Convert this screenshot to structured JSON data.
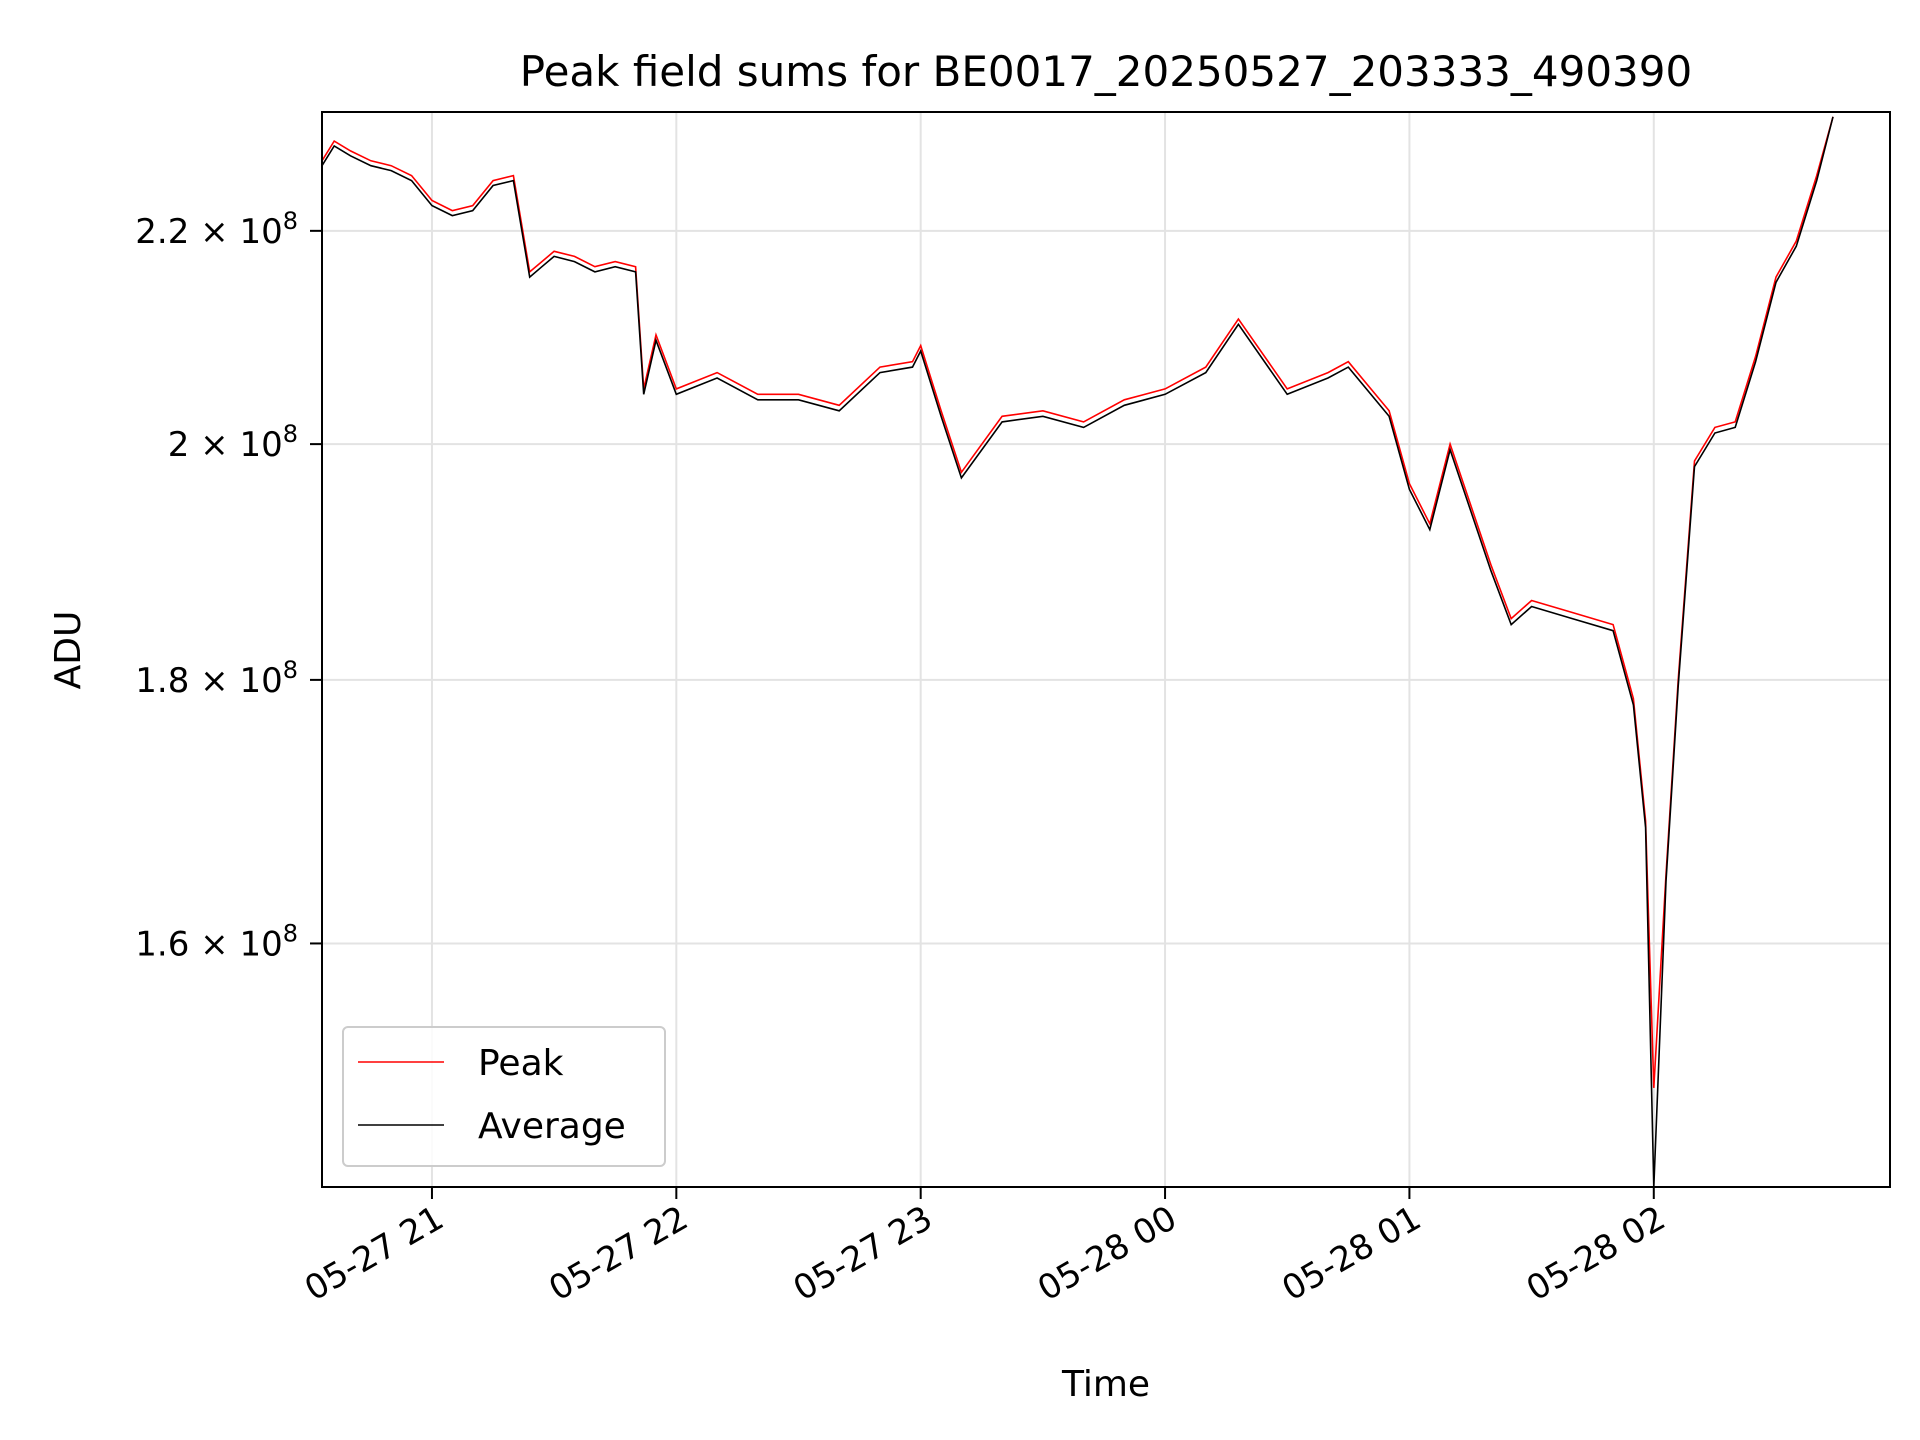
{
  "chart_data": {
    "type": "line",
    "title": "Peak field sums for BE0017_20250527_203333_490390",
    "xlabel": "Time",
    "ylabel": "ADU",
    "y_scale": "log",
    "grid": true,
    "legend": "lower-left",
    "xlim": [
      "2025-05-27 20:33",
      "2025-05-28 02:58"
    ],
    "ylim": [
      143500000,
      232000000
    ],
    "x_ticks": [
      {
        "value": "2025-05-27 21:00",
        "label": "05-27 21"
      },
      {
        "value": "2025-05-27 22:00",
        "label": "05-27 22"
      },
      {
        "value": "2025-05-27 23:00",
        "label": "05-27 23"
      },
      {
        "value": "2025-05-28 00:00",
        "label": "05-28 00"
      },
      {
        "value": "2025-05-28 01:00",
        "label": "05-28 01"
      },
      {
        "value": "2025-05-28 02:00",
        "label": "05-28 02"
      }
    ],
    "y_ticks": [
      {
        "value": 160000000,
        "mantissa": "1.6",
        "base": "10",
        "exp": "8"
      },
      {
        "value": 180000000,
        "mantissa": "1.8",
        "base": "10",
        "exp": "8"
      },
      {
        "value": 200000000,
        "mantissa": "2",
        "base": "10",
        "exp": "8"
      },
      {
        "value": 220000000,
        "mantissa": "2.2",
        "base": "10",
        "exp": "8"
      }
    ],
    "series": [
      {
        "name": "Peak",
        "color": "#ff0000",
        "x": [
          "2025-05-27 20:33",
          "2025-05-27 20:36",
          "2025-05-27 20:40",
          "2025-05-27 20:45",
          "2025-05-27 20:50",
          "2025-05-27 20:55",
          "2025-05-27 21:00",
          "2025-05-27 21:05",
          "2025-05-27 21:10",
          "2025-05-27 21:15",
          "2025-05-27 21:20",
          "2025-05-27 21:24",
          "2025-05-27 21:27",
          "2025-05-27 21:30",
          "2025-05-27 21:35",
          "2025-05-27 21:40",
          "2025-05-27 21:45",
          "2025-05-27 21:50",
          "2025-05-27 21:52",
          "2025-05-27 21:55",
          "2025-05-27 22:00",
          "2025-05-27 22:10",
          "2025-05-27 22:20",
          "2025-05-27 22:30",
          "2025-05-27 22:40",
          "2025-05-27 22:50",
          "2025-05-27 22:58",
          "2025-05-27 23:00",
          "2025-05-27 23:05",
          "2025-05-27 23:10",
          "2025-05-27 23:20",
          "2025-05-27 23:30",
          "2025-05-27 23:40",
          "2025-05-27 23:50",
          "2025-05-28 00:00",
          "2025-05-28 00:10",
          "2025-05-28 00:18",
          "2025-05-28 00:30",
          "2025-05-28 00:40",
          "2025-05-28 00:45",
          "2025-05-28 00:55",
          "2025-05-28 01:00",
          "2025-05-28 01:05",
          "2025-05-28 01:10",
          "2025-05-28 01:20",
          "2025-05-28 01:25",
          "2025-05-28 01:30",
          "2025-05-28 01:40",
          "2025-05-28 01:50",
          "2025-05-28 01:55",
          "2025-05-28 01:58",
          "2025-05-28 02:00",
          "2025-05-28 02:03",
          "2025-05-28 02:06",
          "2025-05-28 02:10",
          "2025-05-28 02:15",
          "2025-05-28 02:20",
          "2025-05-28 02:25",
          "2025-05-28 02:30",
          "2025-05-28 02:35",
          "2025-05-28 02:40",
          "2025-05-28 02:44"
        ],
        "values": [
          227000000,
          229000000,
          228000000,
          227000000,
          226500000,
          225500000,
          223000000,
          222000000,
          222500000,
          225000000,
          225500000,
          216000000,
          217000000,
          218000000,
          217500000,
          216500000,
          217000000,
          216500000,
          205000000,
          210000000,
          205000000,
          206500000,
          204500000,
          204500000,
          203500000,
          207000000,
          207500000,
          209000000,
          203000000,
          197500000,
          202500000,
          203000000,
          202000000,
          204000000,
          205000000,
          207000000,
          211500000,
          205000000,
          206500000,
          207500000,
          203000000,
          196500000,
          193000000,
          200000000,
          189500000,
          185000000,
          186500000,
          185500000,
          184500000,
          178500000,
          169000000,
          150000000,
          165000000,
          180000000,
          198500000,
          201500000,
          202000000,
          208000000,
          215500000,
          219000000,
          225500000,
          231500000
        ]
      },
      {
        "name": "Average",
        "color": "#000000",
        "x": [
          "2025-05-27 20:33",
          "2025-05-27 20:36",
          "2025-05-27 20:40",
          "2025-05-27 20:45",
          "2025-05-27 20:50",
          "2025-05-27 20:55",
          "2025-05-27 21:00",
          "2025-05-27 21:05",
          "2025-05-27 21:10",
          "2025-05-27 21:15",
          "2025-05-27 21:20",
          "2025-05-27 21:24",
          "2025-05-27 21:27",
          "2025-05-27 21:30",
          "2025-05-27 21:35",
          "2025-05-27 21:40",
          "2025-05-27 21:45",
          "2025-05-27 21:50",
          "2025-05-27 21:52",
          "2025-05-27 21:55",
          "2025-05-27 22:00",
          "2025-05-27 22:10",
          "2025-05-27 22:20",
          "2025-05-27 22:30",
          "2025-05-27 22:40",
          "2025-05-27 22:50",
          "2025-05-27 22:58",
          "2025-05-27 23:00",
          "2025-05-27 23:05",
          "2025-05-27 23:10",
          "2025-05-27 23:20",
          "2025-05-27 23:30",
          "2025-05-27 23:40",
          "2025-05-27 23:50",
          "2025-05-28 00:00",
          "2025-05-28 00:10",
          "2025-05-28 00:18",
          "2025-05-28 00:30",
          "2025-05-28 00:40",
          "2025-05-28 00:45",
          "2025-05-28 00:55",
          "2025-05-28 01:00",
          "2025-05-28 01:05",
          "2025-05-28 01:10",
          "2025-05-28 01:20",
          "2025-05-28 01:25",
          "2025-05-28 01:30",
          "2025-05-28 01:40",
          "2025-05-28 01:50",
          "2025-05-28 01:55",
          "2025-05-28 01:58",
          "2025-05-28 02:00",
          "2025-05-28 02:03",
          "2025-05-28 02:06",
          "2025-05-28 02:10",
          "2025-05-28 02:15",
          "2025-05-28 02:20",
          "2025-05-28 02:25",
          "2025-05-28 02:30",
          "2025-05-28 02:35",
          "2025-05-28 02:40",
          "2025-05-28 02:44"
        ],
        "values": [
          226500000,
          228500000,
          227500000,
          226500000,
          226000000,
          225000000,
          222500000,
          221500000,
          222000000,
          224500000,
          225000000,
          215500000,
          216500000,
          217500000,
          217000000,
          216000000,
          216500000,
          216000000,
          204500000,
          209500000,
          204500000,
          206000000,
          204000000,
          204000000,
          203000000,
          206500000,
          207000000,
          208500000,
          202500000,
          197000000,
          202000000,
          202500000,
          201500000,
          203500000,
          204500000,
          206500000,
          211000000,
          204500000,
          206000000,
          207000000,
          202500000,
          196000000,
          192500000,
          199500000,
          189000000,
          184500000,
          186000000,
          185000000,
          184000000,
          178000000,
          168500000,
          143500000,
          164500000,
          179500000,
          198000000,
          201000000,
          201500000,
          207500000,
          215000000,
          218500000,
          225000000,
          231500000
        ]
      }
    ]
  }
}
